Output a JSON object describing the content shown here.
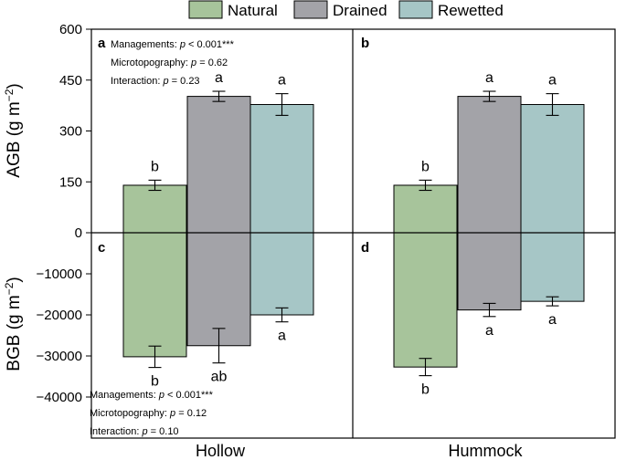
{
  "chart_data": {
    "type": "bar",
    "legend": {
      "placement": "top",
      "entries": [
        {
          "name": "Natural",
          "color": "#a7c49b"
        },
        {
          "name": "Drained",
          "color": "#a3a3a8"
        },
        {
          "name": "Rewetted",
          "color": "#a6c6c6"
        }
      ]
    },
    "categories": [
      "Hollow",
      "Hummock"
    ],
    "top": {
      "ylabel_main": "AGB (g m",
      "ylabel_sup": "−2",
      "ylabel_end": ")",
      "ylim": [
        0,
        600
      ],
      "yticks": [
        {
          "v": 0,
          "t": "0"
        },
        {
          "v": 150,
          "t": "150"
        },
        {
          "v": 300,
          "t": "300"
        },
        {
          "v": 450,
          "t": "450"
        },
        {
          "v": 600,
          "t": "600"
        }
      ],
      "series": [
        {
          "name": "Natural",
          "values": [
            140,
            140
          ],
          "errors": [
            15,
            15
          ],
          "letters": [
            "b",
            "b"
          ]
        },
        {
          "name": "Drained",
          "values": [
            402,
            402
          ],
          "errors": [
            15,
            15
          ],
          "letters": [
            "a",
            "a"
          ]
        },
        {
          "name": "Rewetted",
          "values": [
            378,
            378
          ],
          "errors": [
            32,
            32
          ],
          "letters": [
            "a",
            "a"
          ]
        }
      ],
      "panels": [
        {
          "letter": "a",
          "stats": [
            "Managements: ",
            "p",
            " < 0.001***",
            "Microtopography: ",
            "p",
            " = 0.62",
            "Interaction: ",
            "p",
            " = 0.23"
          ]
        },
        {
          "letter": "b"
        }
      ]
    },
    "bottom": {
      "ylabel_main": "BGB (g m",
      "ylabel_sup": "−2",
      "ylabel_end": ")",
      "ylim": [
        -50000,
        0
      ],
      "yticks": [
        {
          "v": -40000,
          "t": "−40000"
        },
        {
          "v": -30000,
          "t": "−30000"
        },
        {
          "v": -20000,
          "t": "−20000"
        },
        {
          "v": -10000,
          "t": "−10000"
        }
      ],
      "series": [
        {
          "name": "Natural",
          "values": [
            -30200,
            -32700
          ],
          "errors": [
            2600,
            2100
          ],
          "letters": [
            "b",
            "b"
          ]
        },
        {
          "name": "Drained",
          "values": [
            -27500,
            -18800
          ],
          "errors": [
            4200,
            1600
          ],
          "letters": [
            "ab",
            "a"
          ]
        },
        {
          "name": "Rewetted",
          "values": [
            -20000,
            -16700
          ],
          "errors": [
            1700,
            1100
          ],
          "letters": [
            "a",
            "a"
          ]
        }
      ],
      "panels": [
        {
          "letter": "c",
          "stats": [
            "Managements: ",
            "p",
            " < 0.001***",
            "Microtopography: ",
            "p",
            " = 0.12",
            "Interaction: ",
            "p",
            " = 0.10"
          ]
        },
        {
          "letter": "d"
        }
      ]
    }
  }
}
